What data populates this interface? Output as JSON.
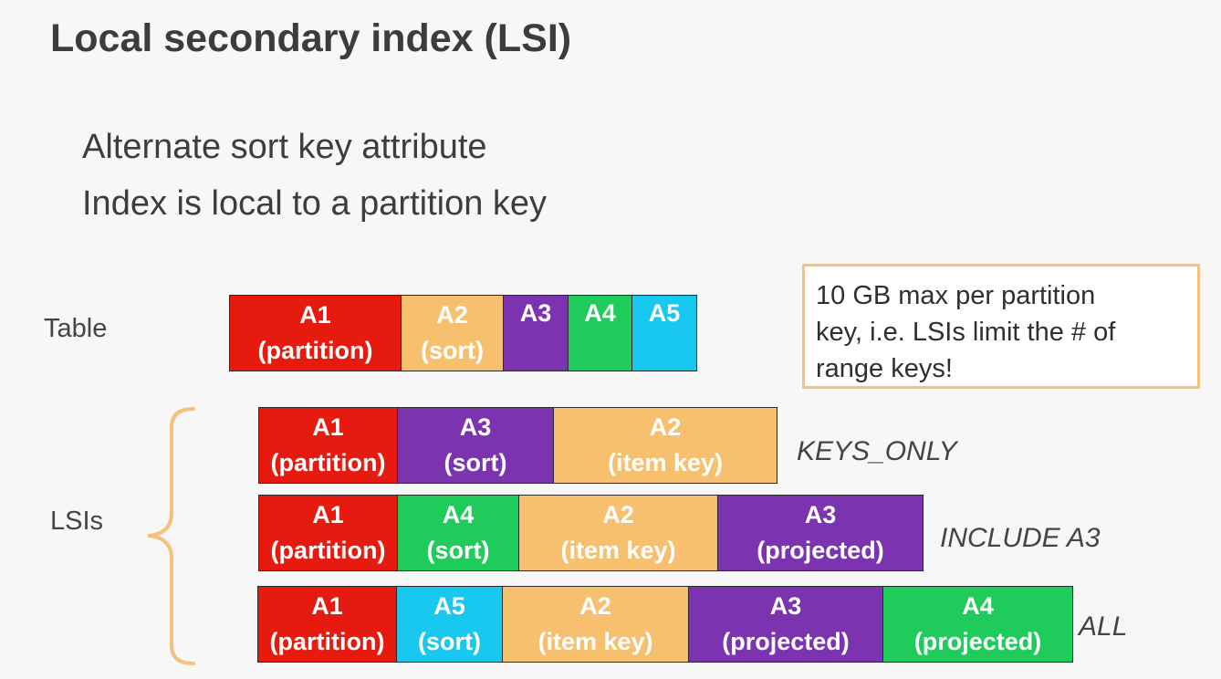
{
  "title": "Local secondary index (LSI)",
  "bullets": [
    "Alternate sort key attribute",
    "Index is local to a partition key"
  ],
  "colors": {
    "red": "#e61a0e",
    "orange": "#f6c06f",
    "purple": "#7b33b0",
    "green": "#1fcb5a",
    "cyan": "#19c8ee"
  },
  "labels": {
    "table": "Table",
    "lsis": "LSIs"
  },
  "table_row": [
    {
      "name": "A1",
      "sub": "(partition)",
      "color": "red"
    },
    {
      "name": "A2",
      "sub": "(sort)",
      "color": "orange"
    },
    {
      "name": "A3",
      "sub": "",
      "color": "purple"
    },
    {
      "name": "A4",
      "sub": "",
      "color": "green"
    },
    {
      "name": "A5",
      "sub": "",
      "color": "cyan"
    }
  ],
  "lsi_rows": [
    {
      "tag": "KEYS_ONLY",
      "cells": [
        {
          "name": "A1",
          "sub": "(partition)",
          "color": "red"
        },
        {
          "name": "A3",
          "sub": "(sort)",
          "color": "purple"
        },
        {
          "name": "A2",
          "sub": "(item key)",
          "color": "orange"
        }
      ]
    },
    {
      "tag": "INCLUDE A3",
      "cells": [
        {
          "name": "A1",
          "sub": "(partition)",
          "color": "red"
        },
        {
          "name": "A4",
          "sub": "(sort)",
          "color": "green"
        },
        {
          "name": "A2",
          "sub": "(item key)",
          "color": "orange"
        },
        {
          "name": "A3",
          "sub": "(projected)",
          "color": "purple"
        }
      ]
    },
    {
      "tag": "ALL",
      "cells": [
        {
          "name": "A1",
          "sub": "(partition)",
          "color": "red"
        },
        {
          "name": "A5",
          "sub": "(sort)",
          "color": "cyan"
        },
        {
          "name": "A2",
          "sub": "(item key)",
          "color": "orange"
        },
        {
          "name": "A3",
          "sub": "(projected)",
          "color": "purple"
        },
        {
          "name": "A4",
          "sub": "(projected)",
          "color": "green"
        }
      ]
    }
  ],
  "note": {
    "lines": [
      "10 GB max per partition",
      "key, i.e. LSIs limit the # of",
      "range keys!"
    ],
    "border_color": "#f5c17c"
  }
}
